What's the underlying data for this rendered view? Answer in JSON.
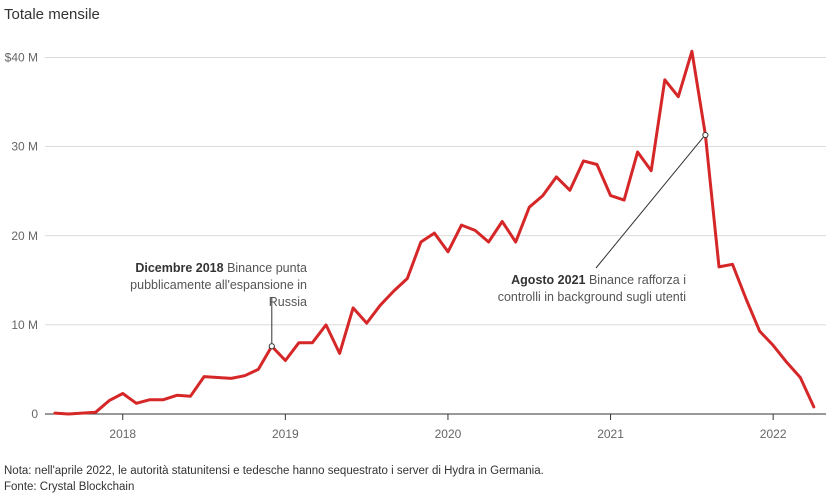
{
  "chart_data": {
    "type": "line",
    "title": "Totale mensile",
    "xlabel": "",
    "ylabel": "",
    "x_ticks": [
      "2018",
      "2019",
      "2020",
      "2021",
      "2022"
    ],
    "y_ticks": [
      "0",
      "10 M",
      "20 M",
      "30 M",
      "$40 M"
    ],
    "ylim": [
      0,
      40
    ],
    "y_unit": "M $",
    "grid": true,
    "series": [
      {
        "color": "#d62728",
        "points": [
          {
            "x": "2017-08",
            "y": 0.1
          },
          {
            "x": "2017-09",
            "y": 0.0
          },
          {
            "x": "2017-10",
            "y": 0.1
          },
          {
            "x": "2017-11",
            "y": 0.2
          },
          {
            "x": "2017-12",
            "y": 1.5
          },
          {
            "x": "2018-01",
            "y": 2.3
          },
          {
            "x": "2018-02",
            "y": 1.2
          },
          {
            "x": "2018-03",
            "y": 1.6
          },
          {
            "x": "2018-04",
            "y": 1.6
          },
          {
            "x": "2018-05",
            "y": 2.1
          },
          {
            "x": "2018-06",
            "y": 2.0
          },
          {
            "x": "2018-07",
            "y": 4.2
          },
          {
            "x": "2018-08",
            "y": 4.1
          },
          {
            "x": "2018-09",
            "y": 4.0
          },
          {
            "x": "2018-10",
            "y": 4.3
          },
          {
            "x": "2018-11",
            "y": 5.0
          },
          {
            "x": "2018-12",
            "y": 7.6
          },
          {
            "x": "2019-01",
            "y": 6.0
          },
          {
            "x": "2019-02",
            "y": 8.0
          },
          {
            "x": "2019-03",
            "y": 8.0
          },
          {
            "x": "2019-04",
            "y": 10.0
          },
          {
            "x": "2019-05",
            "y": 6.8
          },
          {
            "x": "2019-06",
            "y": 11.9
          },
          {
            "x": "2019-07",
            "y": 10.2
          },
          {
            "x": "2019-08",
            "y": 12.2
          },
          {
            "x": "2019-09",
            "y": 13.8
          },
          {
            "x": "2019-10",
            "y": 15.2
          },
          {
            "x": "2019-11",
            "y": 19.3
          },
          {
            "x": "2019-12",
            "y": 20.3
          },
          {
            "x": "2020-01",
            "y": 18.2
          },
          {
            "x": "2020-02",
            "y": 21.2
          },
          {
            "x": "2020-03",
            "y": 20.6
          },
          {
            "x": "2020-04",
            "y": 19.3
          },
          {
            "x": "2020-05",
            "y": 21.6
          },
          {
            "x": "2020-06",
            "y": 19.3
          },
          {
            "x": "2020-07",
            "y": 23.2
          },
          {
            "x": "2020-08",
            "y": 24.5
          },
          {
            "x": "2020-09",
            "y": 26.6
          },
          {
            "x": "2020-10",
            "y": 25.1
          },
          {
            "x": "2020-11",
            "y": 28.4
          },
          {
            "x": "2020-12",
            "y": 28.0
          },
          {
            "x": "2021-01",
            "y": 24.5
          },
          {
            "x": "2021-02",
            "y": 24.0
          },
          {
            "x": "2021-03",
            "y": 29.4
          },
          {
            "x": "2021-04",
            "y": 27.3
          },
          {
            "x": "2021-05",
            "y": 37.5
          },
          {
            "x": "2021-06",
            "y": 35.6
          },
          {
            "x": "2021-07",
            "y": 40.7
          },
          {
            "x": "2021-08",
            "y": 31.3
          },
          {
            "x": "2021-09",
            "y": 16.5
          },
          {
            "x": "2021-10",
            "y": 16.8
          },
          {
            "x": "2021-11",
            "y": 12.9
          },
          {
            "x": "2021-12",
            "y": 9.3
          },
          {
            "x": "2022-01",
            "y": 7.7
          },
          {
            "x": "2022-02",
            "y": 5.8
          },
          {
            "x": "2022-03",
            "y": 4.1
          },
          {
            "x": "2022-04",
            "y": 0.8
          }
        ]
      }
    ],
    "annotations": [
      {
        "x": "2018-12",
        "y": 7.6,
        "label_bold": "Dicembre 2018",
        "lines": [
          "Binance punta",
          "pubblicamente all'espansione in",
          "Russia"
        ]
      },
      {
        "x": "2021-08",
        "y": 31.3,
        "label_bold": "Agosto 2021",
        "lines": [
          "Binance rafforza i",
          "controlli in background sugli utenti"
        ]
      }
    ]
  },
  "footer": {
    "note": "Nota: nell'aprile 2022, le autorità statunitensi e tedesche hanno sequestrato i server di Hydra in Germania.",
    "source": "Fonte: Crystal Blockchain"
  }
}
